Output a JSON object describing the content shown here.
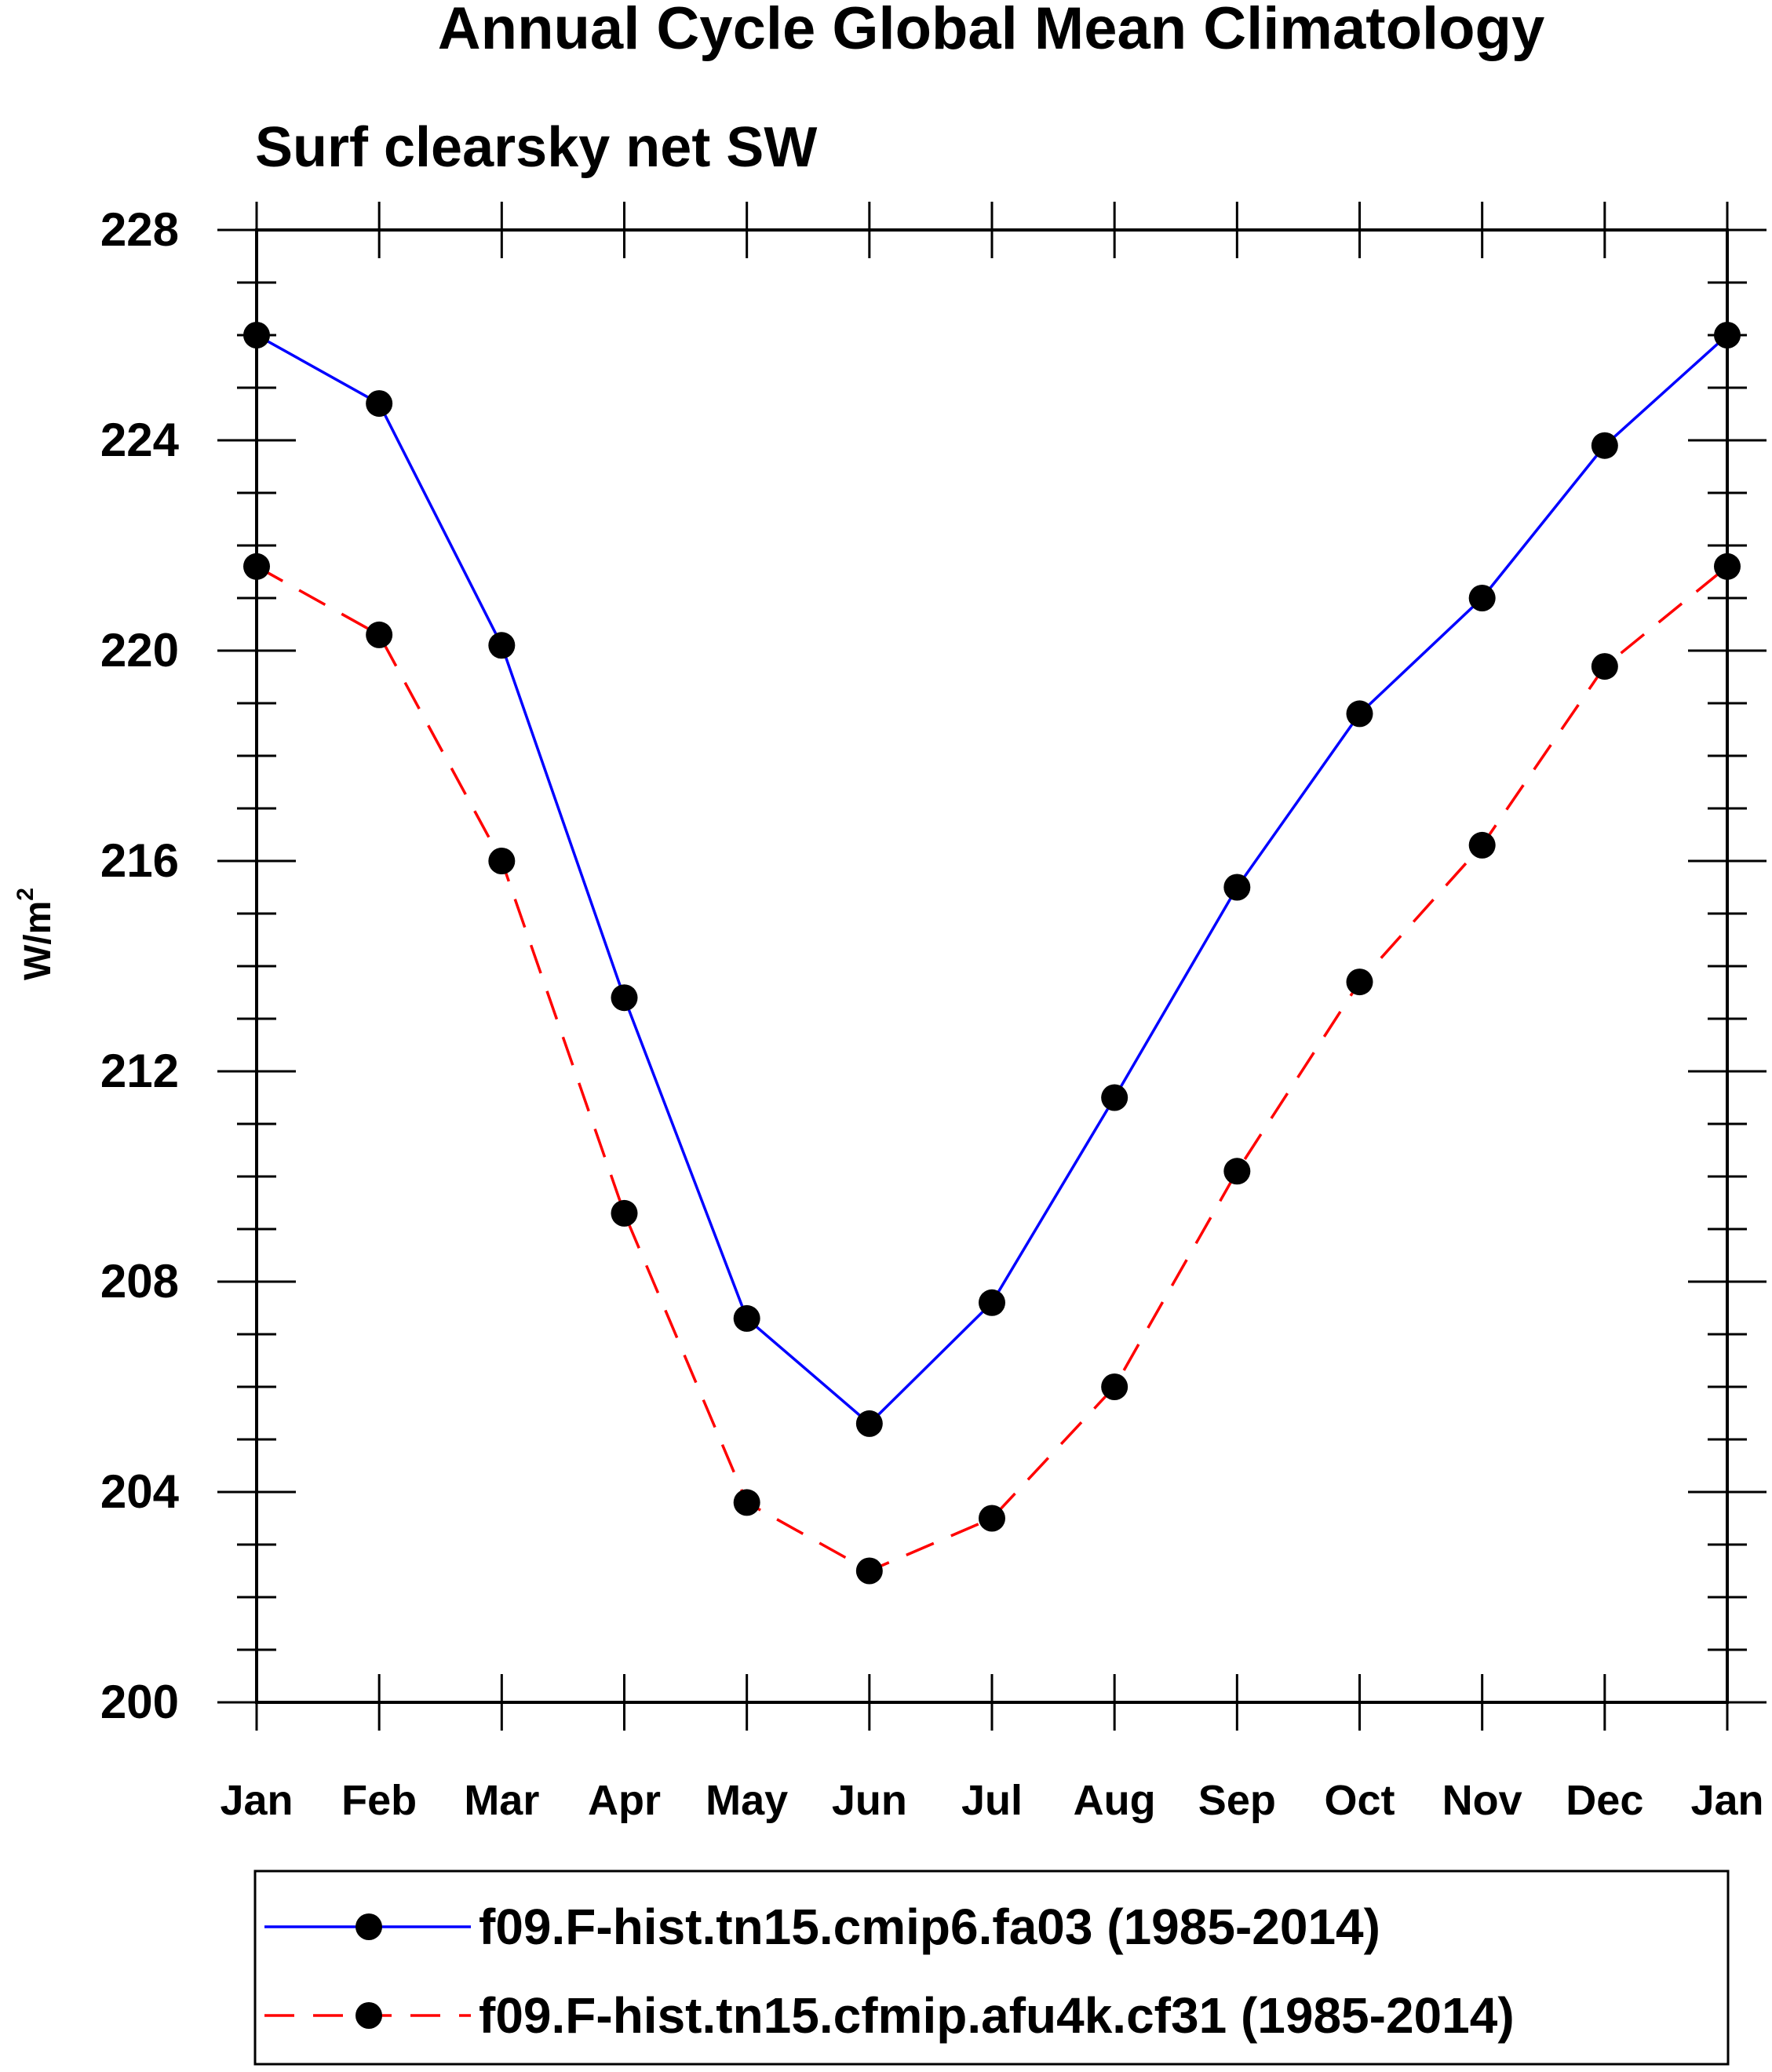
{
  "chart_data": {
    "type": "line",
    "title": "Annual Cycle Global Mean Climatology",
    "subtitle": "Surf clearsky net SW",
    "ylabel": "W/m",
    "ylabel_superscript": "2",
    "xlabel": "",
    "categories": [
      "Jan",
      "Feb",
      "Mar",
      "Apr",
      "May",
      "Jun",
      "Jul",
      "Aug",
      "Sep",
      "Oct",
      "Nov",
      "Dec",
      "Jan"
    ],
    "ylim": [
      200,
      228
    ],
    "yticks": [
      200,
      204,
      208,
      212,
      216,
      220,
      224,
      228
    ],
    "grid": false,
    "legend_position": "bottom",
    "series": [
      {
        "name": "f09.F-hist.tn15.cmip6.fa03 (1985-2014)",
        "color": "#0000ff",
        "dash": "solid",
        "values": [
          226.0,
          224.7,
          220.1,
          213.4,
          207.3,
          205.3,
          207.6,
          211.5,
          215.5,
          218.8,
          221.0,
          223.9,
          226.0
        ]
      },
      {
        "name": "f09.F-hist.tn15.cfmip.afu4k.cf31 (1985-2014)",
        "color": "#ff0000",
        "dash": "dashed",
        "values": [
          221.6,
          220.3,
          216.0,
          209.3,
          203.8,
          202.5,
          203.5,
          206.0,
          210.1,
          213.7,
          216.3,
          219.7,
          221.6
        ]
      }
    ]
  }
}
